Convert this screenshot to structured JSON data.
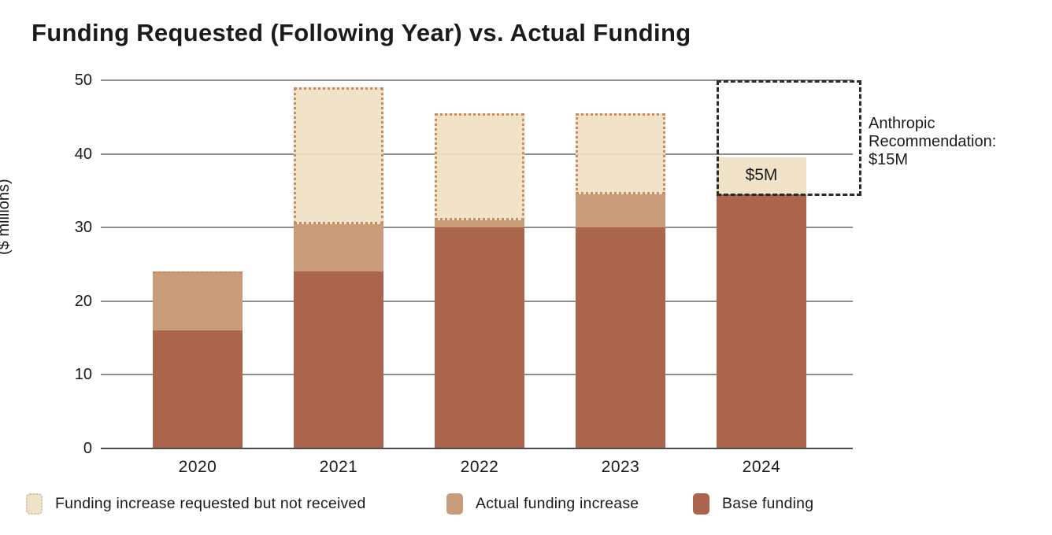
{
  "chart_data": {
    "type": "bar",
    "stacked": true,
    "title": "Funding Requested (Following Year) vs. Actual Funding",
    "ylabel": "($ millions)",
    "ylim": [
      0,
      50
    ],
    "yticks": [
      0,
      10,
      20,
      30,
      40,
      50
    ],
    "grid": "horizontal",
    "categories": [
      "2020",
      "2021",
      "2022",
      "2023",
      "2024"
    ],
    "series": [
      {
        "name": "Base funding",
        "key": "base",
        "values": [
          16,
          24,
          30,
          30,
          34.5
        ]
      },
      {
        "name": "Actual funding increase",
        "key": "actual_increase",
        "values": [
          8,
          6.5,
          1,
          4.5,
          5
        ]
      },
      {
        "name": "Funding increase requested but not received",
        "key": "requested_not_received",
        "values": [
          0,
          18.5,
          14.5,
          11,
          0
        ]
      }
    ],
    "requested_totals": [
      24,
      49,
      45.5,
      45.5,
      null
    ],
    "bar_value_labels": [
      null,
      null,
      null,
      null,
      "$5M"
    ],
    "increase_color_override": [
      null,
      null,
      null,
      null,
      "cream"
    ],
    "annotation": {
      "year": "2024",
      "box_from": 34.5,
      "box_to": 50,
      "lines": [
        "Anthropic",
        "Recommendation:",
        "$15M"
      ]
    },
    "legend": [
      {
        "label": "Funding increase requested but not received",
        "color_key": "cream",
        "dotted_swatch": true
      },
      {
        "label": "Actual funding increase",
        "color_key": "tan",
        "dotted_swatch": false
      },
      {
        "label": "Base funding",
        "color_key": "brown",
        "dotted_swatch": false
      }
    ],
    "colors": {
      "cream": "rgba(239,225,196,0.93)",
      "tan": "#c99c79",
      "brown": "#ab654c",
      "dotted_border": "#c88e67",
      "annotation_border": "#2b2b2b",
      "gridline": "#8e8e8e",
      "axis": "#4f4f4f",
      "text": "#1b1b1b"
    }
  }
}
